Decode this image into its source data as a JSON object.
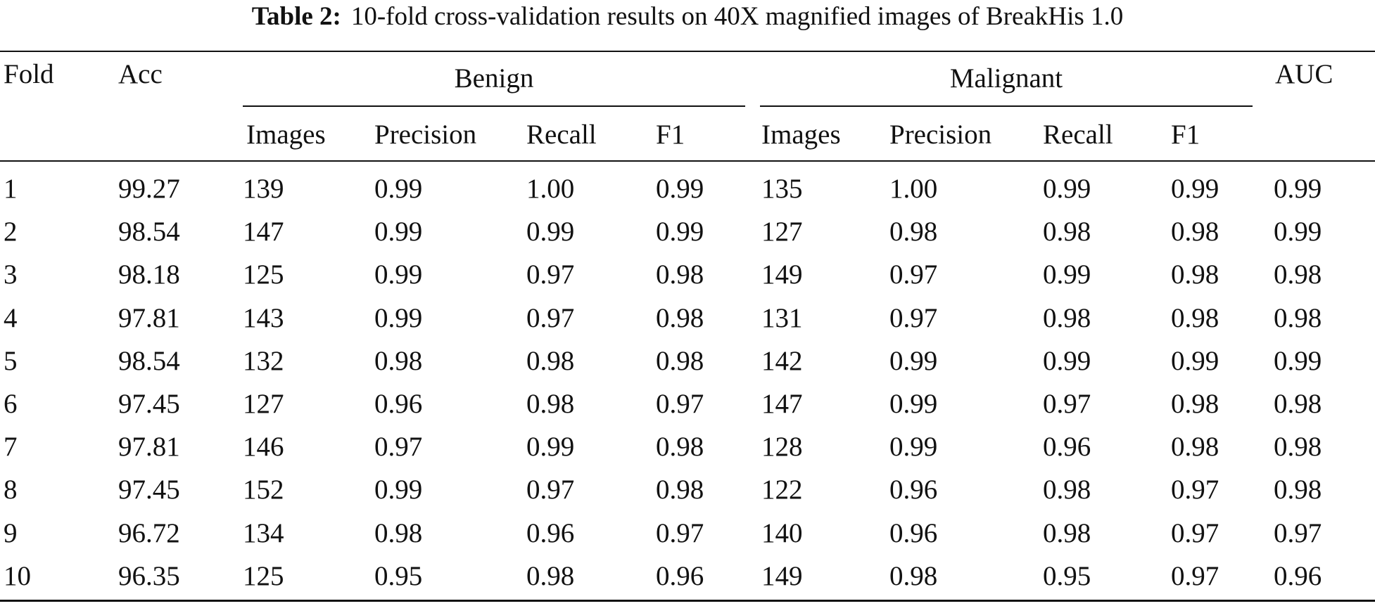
{
  "caption": {
    "label": "Table 2:",
    "text": "10-fold cross-validation results on 40X magnified images of BreakHis 1.0"
  },
  "header": {
    "fold": "Fold",
    "acc": "Acc",
    "benign": "Benign",
    "malignant": "Malignant",
    "auc": "AUC",
    "sub": {
      "images": "Images",
      "precision": "Precision",
      "recall": "Recall",
      "f1": "F1"
    }
  },
  "rows": [
    [
      "1",
      "99.27",
      "139",
      "0.99",
      "1.00",
      "0.99",
      "135",
      "1.00",
      "0.99",
      "0.99",
      "0.99"
    ],
    [
      "2",
      "98.54",
      "147",
      "0.99",
      "0.99",
      "0.99",
      "127",
      "0.98",
      "0.98",
      "0.98",
      "0.99"
    ],
    [
      "3",
      "98.18",
      "125",
      "0.99",
      "0.97",
      "0.98",
      "149",
      "0.97",
      "0.99",
      "0.98",
      "0.98"
    ],
    [
      "4",
      "97.81",
      "143",
      "0.99",
      "0.97",
      "0.98",
      "131",
      "0.97",
      "0.98",
      "0.98",
      "0.98"
    ],
    [
      "5",
      "98.54",
      "132",
      "0.98",
      "0.98",
      "0.98",
      "142",
      "0.99",
      "0.99",
      "0.99",
      "0.99"
    ],
    [
      "6",
      "97.45",
      "127",
      "0.96",
      "0.98",
      "0.97",
      "147",
      "0.99",
      "0.97",
      "0.98",
      "0.98"
    ],
    [
      "7",
      "97.81",
      "146",
      "0.97",
      "0.99",
      "0.98",
      "128",
      "0.99",
      "0.96",
      "0.98",
      "0.98"
    ],
    [
      "8",
      "97.45",
      "152",
      "0.99",
      "0.97",
      "0.98",
      "122",
      "0.96",
      "0.98",
      "0.97",
      "0.98"
    ],
    [
      "9",
      "96.72",
      "134",
      "0.98",
      "0.96",
      "0.97",
      "140",
      "0.96",
      "0.98",
      "0.97",
      "0.97"
    ],
    [
      "10",
      "96.35",
      "125",
      "0.95",
      "0.98",
      "0.96",
      "149",
      "0.98",
      "0.95",
      "0.97",
      "0.96"
    ]
  ]
}
